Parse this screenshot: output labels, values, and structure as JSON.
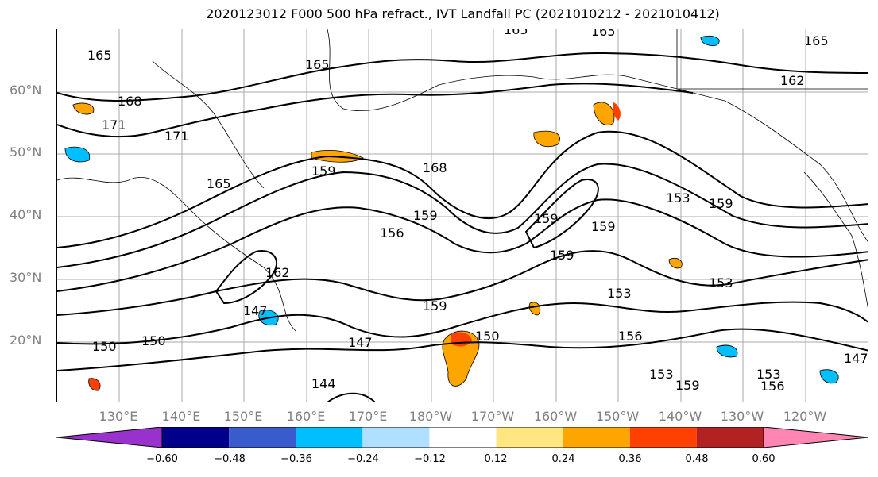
{
  "title": "2020123012 F000 500 hPa refract., IVT Landfall PC (2021010212 - 2021010412)",
  "lat_labels": [
    "60°N",
    "50°N",
    "40°N",
    "30°N",
    "20°N"
  ],
  "lon_labels": [
    "130°E",
    "140°E",
    "150°E",
    "160°E",
    "170°E",
    "180°W",
    "170°W",
    "160°W",
    "150°W",
    "140°W",
    "130°W",
    "120°W"
  ],
  "colorbar": {
    "ticks": [
      "−0.60",
      "−0.48",
      "−0.36",
      "−0.24",
      "−0.12",
      "0.12",
      "0.24",
      "0.36",
      "0.48",
      "0.60"
    ],
    "colors": [
      "#9932cc",
      "#00008b",
      "#3a5bcc",
      "#00bfff",
      "#b0e0ff",
      "#ffffff",
      "#ffe680",
      "#ffa500",
      "#ff4000",
      "#b22222",
      "#ff85b3"
    ]
  },
  "contour_labels": [
    "165",
    "165",
    "165",
    "168",
    "171",
    "171",
    "165",
    "159",
    "168",
    "165",
    "162",
    "165",
    "159",
    "156",
    "159",
    "153",
    "159",
    "162",
    "147",
    "159",
    "153",
    "153",
    "150",
    "150",
    "147",
    "150",
    "144",
    "156",
    "153",
    "159",
    "147",
    "153",
    "156",
    "159",
    "159"
  ]
}
